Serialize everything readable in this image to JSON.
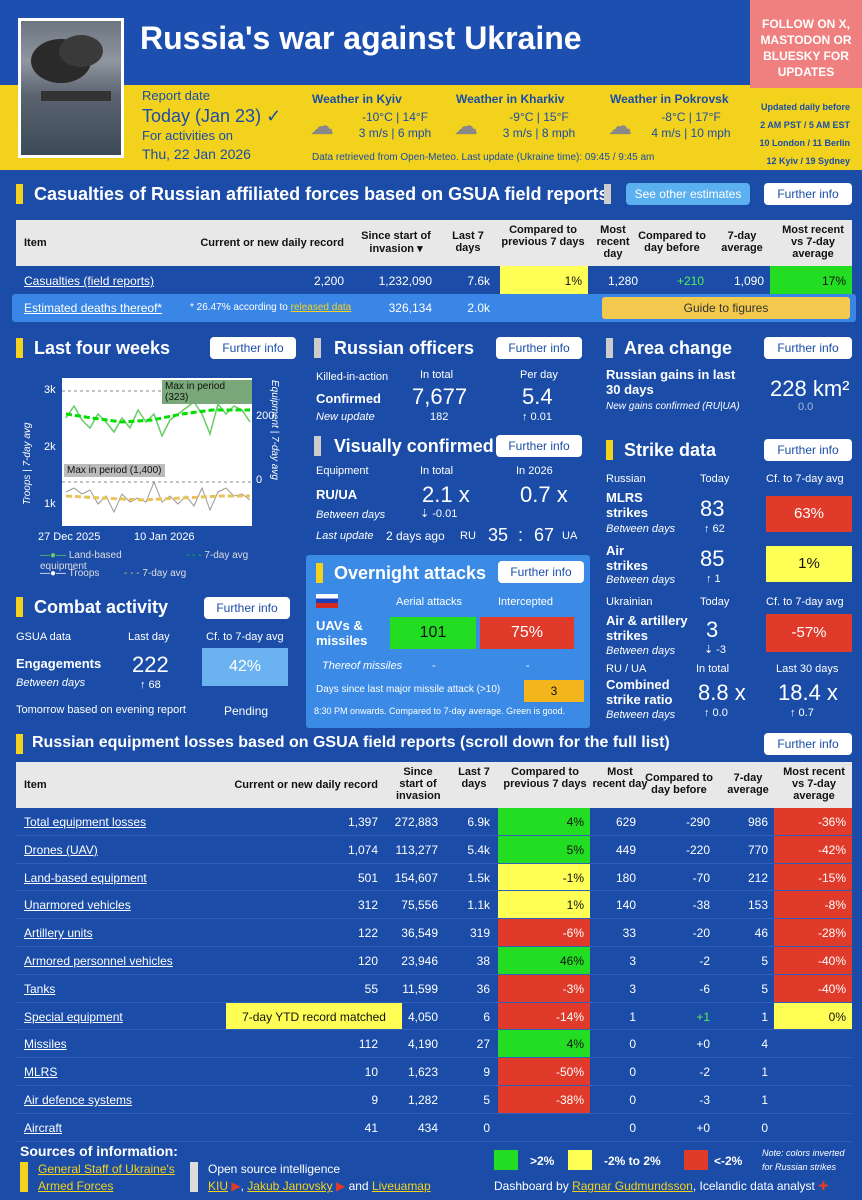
{
  "header": {
    "title": "Russia's war against Ukraine",
    "report_label": "Report date",
    "report_date": "Today (Jan 23)",
    "check": "✓",
    "activities_label": "For activities on",
    "activities_date": "Thu, 22 Jan 2026",
    "follow": "FOLLOW ON X, MASTODON OR BLUESKY FOR UPDATES",
    "weather": [
      {
        "label": "Weather in Kyiv",
        "temp": "-10°C | 14°F",
        "wind": "3 m/s | 6 mph"
      },
      {
        "label": "Weather in Kharkiv",
        "temp": "-9°C | 15°F",
        "wind": "3 m/s | 8 mph"
      },
      {
        "label": "Weather in Pokrovsk",
        "temp": "-8°C | 17°F",
        "wind": "4 m/s | 10 mph"
      }
    ],
    "weather_note": "Data retrieved from Open-Meteo. Last update (Ukraine time): 09:45 / 9:45 am",
    "updated": [
      "Updated daily before",
      "2 AM PST / 5 AM EST",
      "10 London / 11 Berlin",
      "12 Kyiv / 19 Sydney"
    ]
  },
  "casualties": {
    "title": "Casualties of Russian affiliated forces based on GSUA field reports",
    "other_btn": "See other estimates",
    "info_btn": "Further info",
    "headers": [
      "Item",
      "Current or new daily record",
      "Since start of invasion",
      "Last 7 days",
      "Compared to previous 7 days",
      "Most recent day",
      "Compared to day before",
      "7-day average",
      "Most recent vs 7-day average"
    ],
    "sort_icon": "▾",
    "row1": {
      "item": "Casualties (field reports)",
      "daily": "2,200",
      "since": "1,232,090",
      "last7": "7.6k",
      "cmp7": "1%",
      "recent": "1,280",
      "cmpday": "+210",
      "avg": "1,090",
      "vs": "17%"
    },
    "row2": {
      "item": "Estimated deaths thereof*",
      "note": "* 26.47% according to",
      "note_link": "released data",
      "since": "326,134",
      "last7": "2.0k",
      "guide": "Guide to figures"
    }
  },
  "four_weeks": {
    "title": "Last four weeks",
    "info_btn": "Further info",
    "y_left": "Troops | 7-day avg",
    "y_right": "Equipment | 7-day avg",
    "ticks_left": [
      "3k",
      "2k",
      "1k"
    ],
    "ticks_right": [
      "200",
      "0"
    ],
    "max1": "Max in period (323)",
    "max2": "Max in period (1,400)",
    "x_ticks": [
      "27 Dec 2025",
      "10 Jan 2026"
    ],
    "legend": [
      "Land-based equipment",
      "7-day avg",
      "Troops",
      "7-day avg"
    ]
  },
  "combat": {
    "title": "Combat activity",
    "info_btn": "Further info",
    "gsua": "GSUA data",
    "last_day": "Last day",
    "cf": "Cf. to 7-day avg",
    "engagements": "Engagements",
    "value": "222",
    "between": "Between days",
    "delta": "↑ 68",
    "pct": "42%",
    "tomorrow": "Tomorrow based on evening report",
    "pending": "Pending"
  },
  "officers": {
    "title": "Russian officers",
    "info_btn": "Further info",
    "kia": "Killed-in-action",
    "in_total": "In total",
    "per_day": "Per day",
    "confirmed": "Confirmed",
    "total": "7,677",
    "per": "5.4",
    "new_update": "New update",
    "new_val": "182",
    "per_delta": "↑ 0.01"
  },
  "visual": {
    "title": "Visually confirmed",
    "info_btn": "Further info",
    "equipment": "Equipment",
    "in_total": "In total",
    "in2026": "In 2026",
    "ruua": "RU/UA",
    "total": "2.1 x",
    "y2026": "0.7 x",
    "between": "Between days",
    "delta": "⇣ -0.01",
    "last_update": "Last update",
    "ago": "2 days ago",
    "ru": "RU",
    "ru_val": "35",
    "colon": ":",
    "ua_val": "67",
    "ua": "UA"
  },
  "overnight": {
    "title": "Overnight attacks",
    "info_btn": "Further info",
    "aerial": "Aerial attacks",
    "intercepted": "Intercepted",
    "uav": "UAVs & missiles",
    "aerial_val": "101",
    "int_val": "75%",
    "missiles": "Thereof missiles",
    "dash1": "-",
    "dash2": "-",
    "days_since": "Days since last major missile attack (>10)",
    "days_val": "3",
    "note": "8:30 PM onwards. Compared to 7-day average. Green is good."
  },
  "area": {
    "title": "Area change",
    "info_btn": "Further info",
    "gains": "Russian gains in last 30 days",
    "value": "228 km²",
    "new_gains": "New gains confirmed (RU|UA)",
    "new_val": "0.0"
  },
  "strike": {
    "title": "Strike data",
    "info_btn": "Further info",
    "russian": "Russian",
    "today": "Today",
    "cf": "Cf. to 7-day avg",
    "mlrs": "MLRS strikes",
    "mlrs_val": "83",
    "mlrs_delta": "↑ 62",
    "mlrs_pct": "63%",
    "air": "Air strikes",
    "air_val": "85",
    "air_delta": "↑ 1",
    "air_pct": "1%",
    "between": "Between days",
    "ukrainian": "Ukrainian",
    "today2": "Today",
    "cf2": "Cf. to 7-day avg",
    "art": "Air & artillery strikes",
    "art_val": "3",
    "art_delta": "⇣ -3",
    "art_pct": "-57%",
    "ruua": "RU / UA",
    "in_total": "In total",
    "last30": "Last 30 days",
    "combined": "Combined strike ratio",
    "total_val": "8.8 x",
    "last30_val": "18.4 x",
    "d1": "↑ 0.0",
    "d2": "↑ 0.7"
  },
  "equipment": {
    "title": "Russian equipment losses based on GSUA field reports (scroll down for the full list)",
    "info_btn": "Further info",
    "headers": [
      "Item",
      "Current or new daily record",
      "Since start of invasion",
      "Last 7 days",
      "Compared to previous 7 days",
      "Most recent day",
      "Compared to day before",
      "7-day average",
      "Most recent vs 7-day average"
    ],
    "rows": [
      [
        "Total equipment losses",
        "1,397",
        "272,883",
        "6.9k",
        "4%",
        "629",
        "-290",
        "986",
        "-36%",
        "green",
        "red"
      ],
      [
        "Drones (UAV)",
        "1,074",
        "113,277",
        "5.4k",
        "5%",
        "449",
        "-220",
        "770",
        "-42%",
        "green",
        "red"
      ],
      [
        "Land-based equipment",
        "501",
        "154,607",
        "1.5k",
        "-1%",
        "180",
        "-70",
        "212",
        "-15%",
        "yellow",
        "red"
      ],
      [
        "Unarmored vehicles",
        "312",
        "75,556",
        "1.1k",
        "1%",
        "140",
        "-38",
        "153",
        "-8%",
        "yellow",
        "red"
      ],
      [
        "Artillery units",
        "122",
        "36,549",
        "319",
        "-6%",
        "33",
        "-20",
        "46",
        "-28%",
        "red",
        "red"
      ],
      [
        "Armored personnel vehicles",
        "120",
        "23,946",
        "38",
        "46%",
        "3",
        "-2",
        "5",
        "-40%",
        "green",
        "red"
      ],
      [
        "Tanks",
        "55",
        "11,599",
        "36",
        "-3%",
        "3",
        "-6",
        "5",
        "-40%",
        "red",
        "red"
      ],
      [
        "Special equipment",
        "7-day YTD record matched",
        "4,050",
        "6",
        "-14%",
        "1",
        "+1",
        "1",
        "0%",
        "red",
        "yellow"
      ],
      [
        "Missiles",
        "112",
        "4,190",
        "27",
        "4%",
        "0",
        "+0",
        "4",
        "",
        "green",
        ""
      ],
      [
        "MLRS",
        "10",
        "1,623",
        "9",
        "-50%",
        "0",
        "-2",
        "1",
        "",
        "red",
        ""
      ],
      [
        "Air defence systems",
        "9",
        "1,282",
        "5",
        "-38%",
        "0",
        "-3",
        "1",
        "",
        "red",
        ""
      ],
      [
        "Aircraft",
        "41",
        "434",
        "0",
        "",
        "0",
        "+0",
        "0",
        "",
        "",
        ""
      ]
    ]
  },
  "footer": {
    "sources": "Sources of information:",
    "gsua": "General Staff of Ukraine's Armed Forces",
    "osint": "Open source intelligence",
    "kiu": "KIU",
    "jj": "Jakub Janovsky",
    "and": "and",
    "lm": "Liveuamap",
    "l1": ">2%",
    "l2": "-2% to 2%",
    "l3": "<-2%",
    "note": "Note: colors inverted for Russian strikes",
    "dash": "Dashboard by",
    "author": "Ragnar Gudmundsson",
    "analyst": ", Icelandic data analyst"
  }
}
